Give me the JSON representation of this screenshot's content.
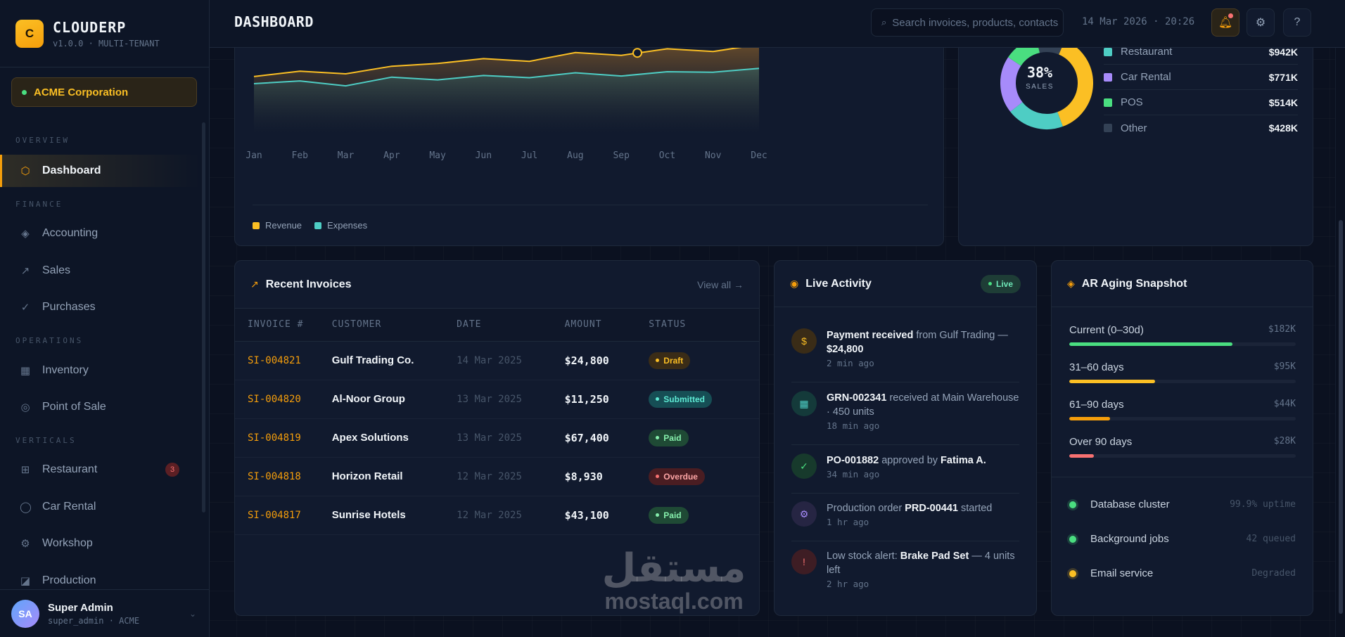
{
  "brand": {
    "logo": "C",
    "name": "CLOUDERP",
    "version": "v1.0.0 · MULTI-TENANT"
  },
  "tenant": {
    "name": "ACME Corporation"
  },
  "nav": {
    "sections": {
      "overview": "OVERVIEW",
      "finance": "FINANCE",
      "operations": "OPERATIONS",
      "verticals": "VERTICALS"
    },
    "items": [
      {
        "label": "Dashboard",
        "icon": "hexagon-icon",
        "active": true
      },
      {
        "label": "Accounting",
        "icon": "diamond-icon"
      },
      {
        "label": "Sales",
        "icon": "arrow-up-right-icon"
      },
      {
        "label": "Purchases",
        "icon": "check-icon"
      },
      {
        "label": "Inventory",
        "icon": "grid-icon"
      },
      {
        "label": "Point of Sale",
        "icon": "target-icon"
      },
      {
        "label": "Restaurant",
        "icon": "table-icon",
        "badge": "3"
      },
      {
        "label": "Car Rental",
        "icon": "circle-icon"
      },
      {
        "label": "Workshop",
        "icon": "gear-icon"
      },
      {
        "label": "Production",
        "icon": "factory-icon"
      }
    ]
  },
  "user": {
    "initials": "SA",
    "name": "Super Admin",
    "sub": "super_admin · ACME"
  },
  "topbar": {
    "title": "DASHBOARD",
    "search_placeholder": "Search invoices, products, contacts",
    "datetime": "14 Mar 2026 · 20:26"
  },
  "colors": {
    "accent": "#f59e0b",
    "revenue": "#fbbf24",
    "expenses": "#4ecdc4",
    "car_rental": "#a78bfa",
    "pos": "#4ade80",
    "other": "#334155"
  },
  "chart_data": {
    "type": "area",
    "categories": [
      "Jan",
      "Feb",
      "Mar",
      "Apr",
      "May",
      "Jun",
      "Jul",
      "Aug",
      "Sep",
      "Oct",
      "Nov",
      "Dec"
    ],
    "series": [
      {
        "name": "Revenue",
        "values": [
          53,
          63,
          58,
          72,
          77,
          86,
          81,
          97,
          92,
          104,
          99,
          112
        ]
      },
      {
        "name": "Expenses",
        "values": [
          40,
          45,
          36,
          52,
          47,
          55,
          51,
          60,
          54,
          62,
          61,
          68
        ]
      }
    ],
    "ylim": [
      -40,
      120
    ]
  },
  "revenue_mix": {
    "center_pct": "38%",
    "center_label": "SALES",
    "segments": [
      {
        "name": "Restaurant",
        "value": "$942K",
        "share": 0.2,
        "color": "#4ecdc4"
      },
      {
        "name": "Car Rental",
        "value": "$771K",
        "share": 0.2,
        "color": "#a78bfa"
      },
      {
        "name": "POS",
        "value": "$514K",
        "share": 0.12,
        "color": "#4ade80"
      },
      {
        "name": "Other",
        "value": "$428K",
        "share": 0.1,
        "color": "#334155"
      }
    ],
    "sales_share": 0.38
  },
  "invoices": {
    "title": "Recent Invoices",
    "view_all": "View all →",
    "columns": [
      "INVOICE #",
      "CUSTOMER",
      "DATE",
      "AMOUNT",
      "STATUS"
    ],
    "rows": [
      {
        "no": "SI-004821",
        "customer": "Gulf Trading Co.",
        "date": "14 Mar 2025",
        "amount": "$24,800",
        "status": "Draft"
      },
      {
        "no": "SI-004820",
        "customer": "Al-Noor Group",
        "date": "13 Mar 2025",
        "amount": "$11,250",
        "status": "Submitted"
      },
      {
        "no": "SI-004819",
        "customer": "Apex Solutions",
        "date": "13 Mar 2025",
        "amount": "$67,400",
        "status": "Paid"
      },
      {
        "no": "SI-004818",
        "customer": "Horizon Retail",
        "date": "12 Mar 2025",
        "amount": "$8,930",
        "status": "Overdue"
      },
      {
        "no": "SI-004817",
        "customer": "Sunrise Hotels",
        "date": "12 Mar 2025",
        "amount": "$43,100",
        "status": "Paid"
      }
    ]
  },
  "activity": {
    "title": "Live Activity",
    "live": "Live",
    "items": [
      {
        "icon": "dollar-icon",
        "parts": [
          {
            "b": "Payment received"
          },
          {
            "t": " from Gulf Trading — "
          },
          {
            "b": "$24,800"
          }
        ],
        "time": "2 min ago"
      },
      {
        "icon": "grid-icon",
        "parts": [
          {
            "b": "GRN-002341"
          },
          {
            "t": " received at Main Warehouse · 450 units"
          }
        ],
        "time": "18 min ago"
      },
      {
        "icon": "check-icon",
        "parts": [
          {
            "b": "PO-001882"
          },
          {
            "t": " approved by "
          },
          {
            "b": "Fatima A."
          }
        ],
        "time": "34 min ago"
      },
      {
        "icon": "gear-icon",
        "parts": [
          {
            "t": "Production order "
          },
          {
            "b": "PRD-00441"
          },
          {
            "t": " started"
          }
        ],
        "time": "1 hr ago"
      },
      {
        "icon": "alert-icon",
        "parts": [
          {
            "t": "Low stock alert: "
          },
          {
            "b": "Brake Pad Set"
          },
          {
            "t": " — 4 units left"
          }
        ],
        "time": "2 hr ago"
      }
    ]
  },
  "ar_aging": {
    "title": "AR Aging Snapshot",
    "buckets": [
      {
        "label": "Current (0–30d)",
        "amount": "$182K",
        "fraction": 0.72,
        "color": "#4ade80"
      },
      {
        "label": "31–60 days",
        "amount": "$95K",
        "fraction": 0.38,
        "color": "#fbbf24"
      },
      {
        "label": "61–90 days",
        "amount": "$44K",
        "fraction": 0.18,
        "color": "#f59e0b"
      },
      {
        "label": "Over 90 days",
        "amount": "$28K",
        "fraction": 0.11,
        "color": "#f87171"
      }
    ],
    "services": [
      {
        "name": "Database cluster",
        "value": "99.9% uptime",
        "color": "#4ade80"
      },
      {
        "name": "Background jobs",
        "value": "42 queued",
        "color": "#4ade80"
      },
      {
        "name": "Email service",
        "value": "Degraded",
        "color": "#fbbf24"
      }
    ]
  },
  "watermark": {
    "arabic": "مستقل",
    "latin": "mostaql.com"
  }
}
